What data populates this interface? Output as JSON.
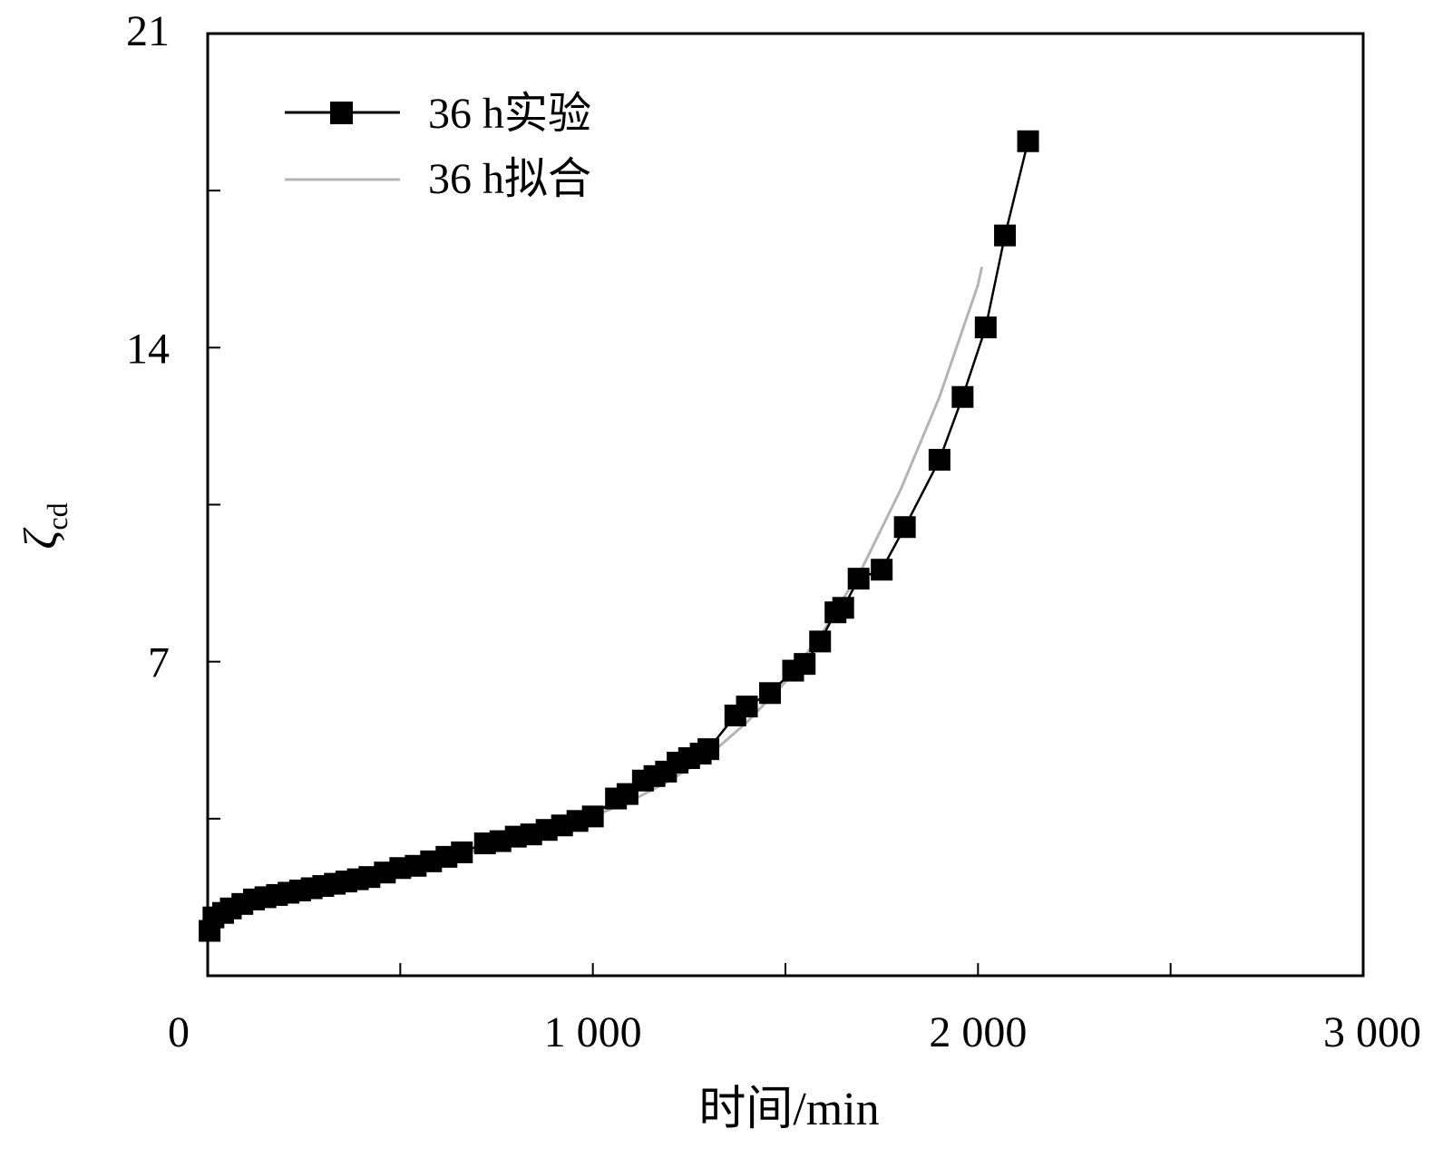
{
  "chart_data": {
    "type": "line",
    "title": "",
    "xlabel": "时间/min",
    "ylabel": {
      "symbol": "ζ",
      "subscript": "cd"
    },
    "xlim": [
      0,
      3000
    ],
    "ylim": [
      0,
      21
    ],
    "x_ticks": [
      0,
      500,
      1000,
      1500,
      2000,
      2500,
      3000
    ],
    "x_tick_labels": [
      "0",
      "",
      "1 000",
      "",
      "2 000",
      "",
      "3 000"
    ],
    "y_ticks": [
      0,
      3.5,
      7,
      10.5,
      14,
      17.5,
      21
    ],
    "y_tick_labels": [
      "",
      "",
      "7",
      "",
      "14",
      "",
      "21"
    ],
    "grid": false,
    "legend_position": "top-left",
    "series": [
      {
        "name": "36 h实验",
        "style": "line-square-markers",
        "color": "#000000",
        "x": [
          5,
          15,
          40,
          60,
          90,
          120,
          150,
          180,
          210,
          240,
          270,
          300,
          330,
          360,
          390,
          420,
          460,
          500,
          540,
          580,
          620,
          660,
          720,
          760,
          800,
          840,
          880,
          920,
          960,
          1000,
          1060,
          1090,
          1130,
          1160,
          1190,
          1220,
          1250,
          1280,
          1300,
          1370,
          1400,
          1460,
          1520,
          1550,
          1590,
          1630,
          1650,
          1690,
          1750,
          1810,
          1900,
          1960,
          2020,
          2070,
          2130
        ],
        "y": [
          1.0,
          1.3,
          1.4,
          1.5,
          1.6,
          1.7,
          1.75,
          1.8,
          1.85,
          1.9,
          1.95,
          2.0,
          2.05,
          2.1,
          2.15,
          2.2,
          2.3,
          2.4,
          2.45,
          2.55,
          2.65,
          2.75,
          2.95,
          3.0,
          3.1,
          3.15,
          3.25,
          3.35,
          3.45,
          3.55,
          3.95,
          4.05,
          4.35,
          4.45,
          4.55,
          4.75,
          4.85,
          4.95,
          5.05,
          5.8,
          6.0,
          6.3,
          6.8,
          6.95,
          7.45,
          8.1,
          8.2,
          8.85,
          9.05,
          10.0,
          11.5,
          12.9,
          14.45,
          16.5,
          18.6
        ]
      },
      {
        "name": "36 h拟合",
        "style": "line",
        "color": "#b4b4b4",
        "x": [
          0,
          100,
          200,
          300,
          400,
          500,
          600,
          700,
          800,
          900,
          1000,
          1100,
          1200,
          1300,
          1400,
          1500,
          1600,
          1700,
          1800,
          1900,
          2000,
          2010
        ],
        "y": [
          1.2,
          1.55,
          1.8,
          2.0,
          2.2,
          2.4,
          2.6,
          2.8,
          3.05,
          3.3,
          3.55,
          3.9,
          4.35,
          4.9,
          5.65,
          6.55,
          7.7,
          9.1,
          10.85,
          12.9,
          15.4,
          15.8
        ]
      }
    ]
  }
}
